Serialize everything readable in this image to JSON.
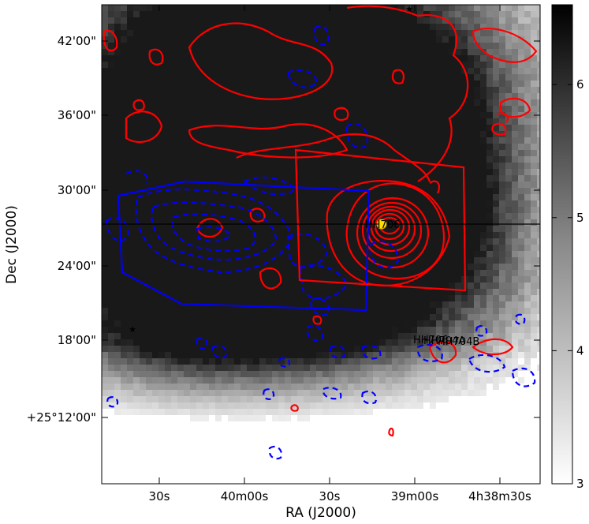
{
  "chart_data": {
    "type": "heatmap",
    "title": "",
    "xlabel": "RA (J2000)",
    "ylabel": "Dec (J2000)",
    "x_tick_labels": [
      "30s",
      "40m00s",
      "30s",
      "39m00s",
      "4h38m30s"
    ],
    "y_tick_labels": [
      "42'00\"",
      "36'00\"",
      "30'00\"",
      "24'00\"",
      "18'00\"",
      "+25°12'00\""
    ],
    "colorbar": {
      "range": [
        3,
        6.6
      ],
      "ticks": [
        3,
        4,
        5,
        6
      ],
      "colormap": "gray_r"
    },
    "grid": false,
    "contours": [
      {
        "color": "#ff0000",
        "style": "solid"
      },
      {
        "color": "#0000ff",
        "style": "dashed"
      }
    ],
    "regions": [
      {
        "shape": "polygon",
        "color": "#0000ff"
      },
      {
        "shape": "polygon",
        "color": "#ff0000"
      }
    ],
    "annotations": [
      {
        "text": "HH706",
        "marker": "yellow-circle"
      },
      {
        "text": "HH706",
        "marker": "none"
      },
      {
        "text": "HH704A",
        "marker": "none"
      },
      {
        "text": "HH704B",
        "marker": "none"
      }
    ],
    "colors": {
      "red_contour": "#ff0000",
      "blue_contour": "#0000ff",
      "source_marker": "#ffdd00"
    }
  }
}
